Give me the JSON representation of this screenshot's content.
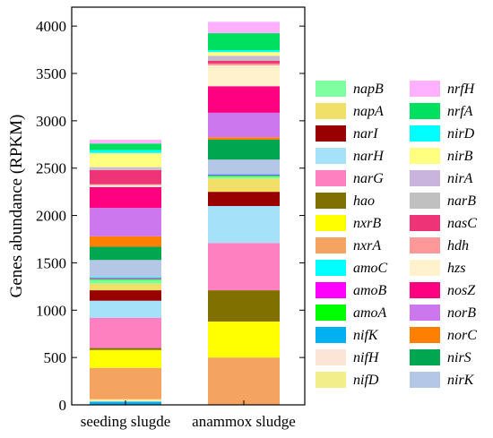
{
  "chart_data": {
    "type": "bar",
    "stacked": true,
    "categories": [
      "seeding slugde",
      "anammox sludge"
    ],
    "xlabel": "",
    "ylabel": "Genes abundance (RPKM)",
    "ylim": [
      0,
      4200
    ],
    "yticks": [
      0,
      500,
      1000,
      1500,
      2000,
      2500,
      3000,
      3500,
      4000
    ],
    "grid": false,
    "legend_position": "right",
    "series": [
      {
        "name": "nifK",
        "color": "#00B0F0",
        "values": [
          35,
          0
        ]
      },
      {
        "name": "nifH",
        "color": "#FCE4D6",
        "values": [
          10,
          0
        ]
      },
      {
        "name": "nifD",
        "color": "#F2EE8A",
        "values": [
          15,
          0
        ]
      },
      {
        "name": "nxrA",
        "color": "#F4A460",
        "values": [
          330,
          500
        ]
      },
      {
        "name": "nxrB",
        "color": "#FFFF00",
        "values": [
          190,
          380
        ]
      },
      {
        "name": "hao",
        "color": "#807000",
        "values": [
          20,
          330
        ]
      },
      {
        "name": "narG",
        "color": "#FF80C0",
        "values": [
          320,
          500
        ]
      },
      {
        "name": "narH",
        "color": "#A6E1FA",
        "values": [
          180,
          390
        ]
      },
      {
        "name": "narI",
        "color": "#990000",
        "values": [
          110,
          150
        ]
      },
      {
        "name": "napA",
        "color": "#F0E068",
        "values": [
          70,
          140
        ]
      },
      {
        "name": "napB",
        "color": "#80FFA0",
        "values": [
          40,
          20
        ]
      },
      {
        "name": "amoA",
        "color": "#00FF00",
        "values": [
          10,
          10
        ]
      },
      {
        "name": "amoB",
        "color": "#FF00FF",
        "values": [
          10,
          10
        ]
      },
      {
        "name": "amoC",
        "color": "#00FFFF",
        "values": [
          10,
          10
        ]
      },
      {
        "name": "nirK",
        "color": "#B4C7E7",
        "values": [
          180,
          150
        ]
      },
      {
        "name": "nirS",
        "color": "#00A650",
        "values": [
          140,
          210
        ]
      },
      {
        "name": "norC",
        "color": "#FF8000",
        "values": [
          110,
          25
        ]
      },
      {
        "name": "norB",
        "color": "#CC77EE",
        "values": [
          300,
          260
        ]
      },
      {
        "name": "nosZ",
        "color": "#FF0080",
        "values": [
          220,
          280
        ]
      },
      {
        "name": "hzs",
        "color": "#FFF2CC",
        "values": [
          20,
          220
        ]
      },
      {
        "name": "hdh",
        "color": "#FF9999",
        "values": [
          10,
          20
        ]
      },
      {
        "name": "nasC",
        "color": "#EE3377",
        "values": [
          150,
          30
        ]
      },
      {
        "name": "narB",
        "color": "#C0C0C0",
        "values": [
          10,
          20
        ]
      },
      {
        "name": "nirA",
        "color": "#C8B4DC",
        "values": [
          20,
          30
        ]
      },
      {
        "name": "nirB",
        "color": "#FFFF80",
        "values": [
          150,
          40
        ]
      },
      {
        "name": "nirD",
        "color": "#00FFFF",
        "values": [
          30,
          20
        ]
      },
      {
        "name": "nrfA",
        "color": "#00E060",
        "values": [
          70,
          180
        ]
      },
      {
        "name": "nrfH",
        "color": "#FFB0FF",
        "values": [
          40,
          120
        ]
      }
    ],
    "legend_columns": [
      [
        "napB",
        "napA",
        "narI",
        "narH",
        "narG",
        "hao",
        "nxrB",
        "nxrA",
        "amoC",
        "amoB",
        "amoA",
        "nifK",
        "nifH",
        "nifD"
      ],
      [
        "nrfH",
        "nrfA",
        "nirD",
        "nirB",
        "nirA",
        "narB",
        "nasC",
        "hdh",
        "hzs",
        "nosZ",
        "norB",
        "norC",
        "nirS",
        "nirK"
      ]
    ]
  }
}
